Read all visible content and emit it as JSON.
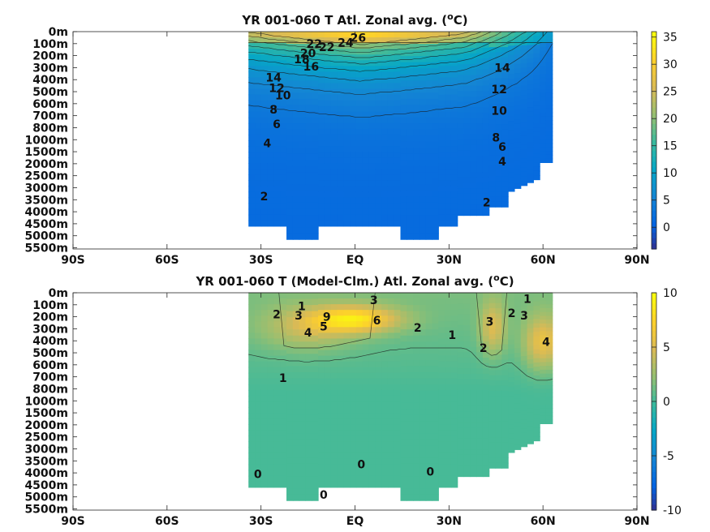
{
  "chart_data": [
    {
      "type": "heatmap",
      "title_main": "YR 001-060 T Atl. Zonal avg. (",
      "title_sup": "o",
      "title_end": "C)",
      "x_ticks": [
        "90S",
        "60S",
        "30S",
        "EQ",
        "30N",
        "60N",
        "90N"
      ],
      "x_tick_values": [
        -90,
        -60,
        -30,
        0,
        30,
        60,
        90
      ],
      "y_ticks": [
        "0m",
        "100m",
        "200m",
        "300m",
        "400m",
        "500m",
        "600m",
        "700m",
        "800m",
        "1000m",
        "1500m",
        "2000m",
        "2500m",
        "3000m",
        "3500m",
        "4000m",
        "4500m",
        "5000m",
        "5500m"
      ],
      "data_extent_lat": [
        -34,
        63
      ],
      "colorbar_ticks": [
        "35",
        "30",
        "25",
        "20",
        "15",
        "10",
        "5",
        "0"
      ],
      "colorbar_values": [
        35,
        30,
        25,
        20,
        15,
        10,
        5,
        0
      ],
      "clim": [
        -4,
        36
      ],
      "contour_labels": [
        {
          "text": "26",
          "lat": 1,
          "depth_idx": 0.5
        },
        {
          "text": "24",
          "lat": -3,
          "depth_idx": 0.9
        },
        {
          "text": "22",
          "lat": -13,
          "depth_idx": 1.0
        },
        {
          "text": "22",
          "lat": -9,
          "depth_idx": 1.3
        },
        {
          "text": "20",
          "lat": -15,
          "depth_idx": 1.8
        },
        {
          "text": "18",
          "lat": -17,
          "depth_idx": 2.3
        },
        {
          "text": "16",
          "lat": -14,
          "depth_idx": 2.9
        },
        {
          "text": "14",
          "lat": -26,
          "depth_idx": 3.8
        },
        {
          "text": "12",
          "lat": -25,
          "depth_idx": 4.7
        },
        {
          "text": "10",
          "lat": -23,
          "depth_idx": 5.3
        },
        {
          "text": "8",
          "lat": -26,
          "depth_idx": 6.5
        },
        {
          "text": "6",
          "lat": -25,
          "depth_idx": 7.7
        },
        {
          "text": "4",
          "lat": -28,
          "depth_idx": 9.3
        },
        {
          "text": "2",
          "lat": -29,
          "depth_idx": 13.7
        },
        {
          "text": "14",
          "lat": 47,
          "depth_idx": 3.0
        },
        {
          "text": "12",
          "lat": 46,
          "depth_idx": 4.8
        },
        {
          "text": "10",
          "lat": 46,
          "depth_idx": 6.6
        },
        {
          "text": "8",
          "lat": 45,
          "depth_idx": 8.8
        },
        {
          "text": "6",
          "lat": 47,
          "depth_idx": 9.6
        },
        {
          "text": "4",
          "lat": 47,
          "depth_idx": 10.8
        },
        {
          "text": "2",
          "lat": 42,
          "depth_idx": 14.2
        }
      ]
    },
    {
      "type": "heatmap",
      "title_main": "YR 001-060 T (Model-Clm.) Atl. Zonal avg. (",
      "title_sup": "o",
      "title_end": "C)",
      "x_ticks": [
        "90S",
        "60S",
        "30S",
        "EQ",
        "30N",
        "60N",
        "90N"
      ],
      "x_tick_values": [
        -90,
        -60,
        -30,
        0,
        30,
        60,
        90
      ],
      "y_ticks": [
        "0m",
        "100m",
        "200m",
        "300m",
        "400m",
        "500m",
        "600m",
        "700m",
        "800m",
        "1000m",
        "1500m",
        "2000m",
        "2500m",
        "3000m",
        "3500m",
        "4000m",
        "4500m",
        "5000m",
        "5500m"
      ],
      "data_extent_lat": [
        -34,
        63
      ],
      "colorbar_ticks": [
        "10",
        "5",
        "0",
        "-5",
        "-10"
      ],
      "colorbar_values": [
        10,
        5,
        0,
        -5,
        -10
      ],
      "clim": [
        -10,
        10
      ],
      "contour_labels": [
        {
          "text": "3",
          "lat": 6,
          "depth_idx": 0.6
        },
        {
          "text": "1",
          "lat": -17,
          "depth_idx": 1.1
        },
        {
          "text": "2",
          "lat": -25,
          "depth_idx": 1.8
        },
        {
          "text": "3",
          "lat": -18,
          "depth_idx": 1.9
        },
        {
          "text": "9",
          "lat": -9,
          "depth_idx": 2.0
        },
        {
          "text": "5",
          "lat": -10,
          "depth_idx": 2.8
        },
        {
          "text": "4",
          "lat": -15,
          "depth_idx": 3.3
        },
        {
          "text": "6",
          "lat": 7,
          "depth_idx": 2.3
        },
        {
          "text": "2",
          "lat": 20,
          "depth_idx": 2.9
        },
        {
          "text": "1",
          "lat": 31,
          "depth_idx": 3.5
        },
        {
          "text": "1",
          "lat": 55,
          "depth_idx": 0.5
        },
        {
          "text": "3",
          "lat": 43,
          "depth_idx": 2.4
        },
        {
          "text": "2",
          "lat": 50,
          "depth_idx": 1.7
        },
        {
          "text": "3",
          "lat": 54,
          "depth_idx": 1.9
        },
        {
          "text": "2",
          "lat": 41,
          "depth_idx": 4.6
        },
        {
          "text": "4",
          "lat": 61,
          "depth_idx": 4.1
        },
        {
          "text": "1",
          "lat": -23,
          "depth_idx": 7.1
        },
        {
          "text": "0",
          "lat": -31,
          "depth_idx": 15.1
        },
        {
          "text": "0",
          "lat": 2,
          "depth_idx": 14.3
        },
        {
          "text": "0",
          "lat": 24,
          "depth_idx": 14.9
        },
        {
          "text": "0",
          "lat": -10,
          "depth_idx": 16.8
        }
      ]
    }
  ]
}
